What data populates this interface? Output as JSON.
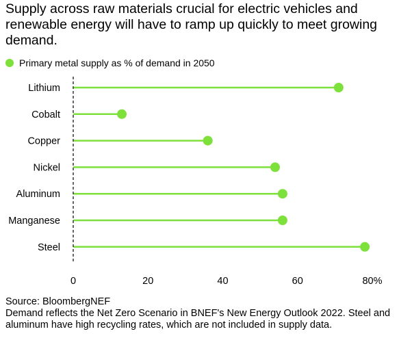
{
  "title": "Supply across raw materials crucial for electric vehicles and renewable energy will have to ramp up quickly to meet growing demand.",
  "footer": {
    "source": "Source: BloombergNEF",
    "note": "Demand reflects the Net Zero Scenario in BNEF's New Energy Outlook 2022. Steel and aluminum have high recycling rates, which are not included in supply data."
  },
  "colors": {
    "accent": "#7ee03a",
    "axis": "#333333",
    "text": "#000000"
  },
  "chart_data": {
    "type": "lollipop",
    "legend": "Primary metal supply as % of demand in 2050",
    "categories": [
      "Lithium",
      "Cobalt",
      "Copper",
      "Nickel",
      "Aluminum",
      "Manganese",
      "Steel"
    ],
    "values": [
      71,
      13,
      36,
      54,
      56,
      56,
      78
    ],
    "xlim": [
      0,
      80
    ],
    "xticks": [
      "0",
      "20",
      "40",
      "60",
      "80%"
    ],
    "xtick_values": [
      0,
      20,
      40,
      60,
      80
    ]
  }
}
